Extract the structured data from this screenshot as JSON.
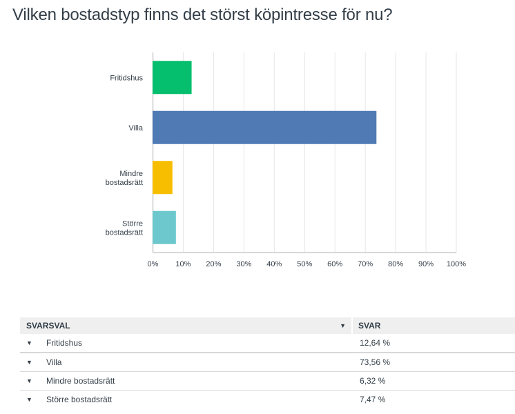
{
  "title": "Vilken bostadstyp finns det störst köpintresse för nu?",
  "chart_data": {
    "type": "bar",
    "orientation": "horizontal",
    "title": "Vilken bostadstyp finns det störst köpintresse för nu?",
    "categories": [
      [
        "Fritidshus"
      ],
      [
        "Villa"
      ],
      [
        "Mindre",
        "bostadsrätt"
      ],
      [
        "Större",
        "bostadsrätt"
      ]
    ],
    "values": [
      12.64,
      73.56,
      6.32,
      7.47
    ],
    "colors": [
      "#05bf6e",
      "#4f7ab4",
      "#f7be00",
      "#6cc8cd"
    ],
    "xlim": [
      0,
      100
    ],
    "ticks": [
      "0%",
      "10%",
      "20%",
      "30%",
      "40%",
      "50%",
      "60%",
      "70%",
      "80%",
      "90%",
      "100%"
    ],
    "grid": true,
    "xlabel": "",
    "ylabel": ""
  },
  "table": {
    "headers": {
      "choice": "SVARSVAL",
      "response": "SVAR"
    },
    "sort_icon": "caret-down-icon",
    "rows": [
      {
        "choice": "Fritidshus",
        "response": "12,64 %"
      },
      {
        "choice": "Villa",
        "response": "73,56 %"
      },
      {
        "choice": "Mindre bostadsrätt",
        "response": "6,32 %"
      },
      {
        "choice": "Större bostadsrätt",
        "response": "7,47 %"
      }
    ]
  }
}
